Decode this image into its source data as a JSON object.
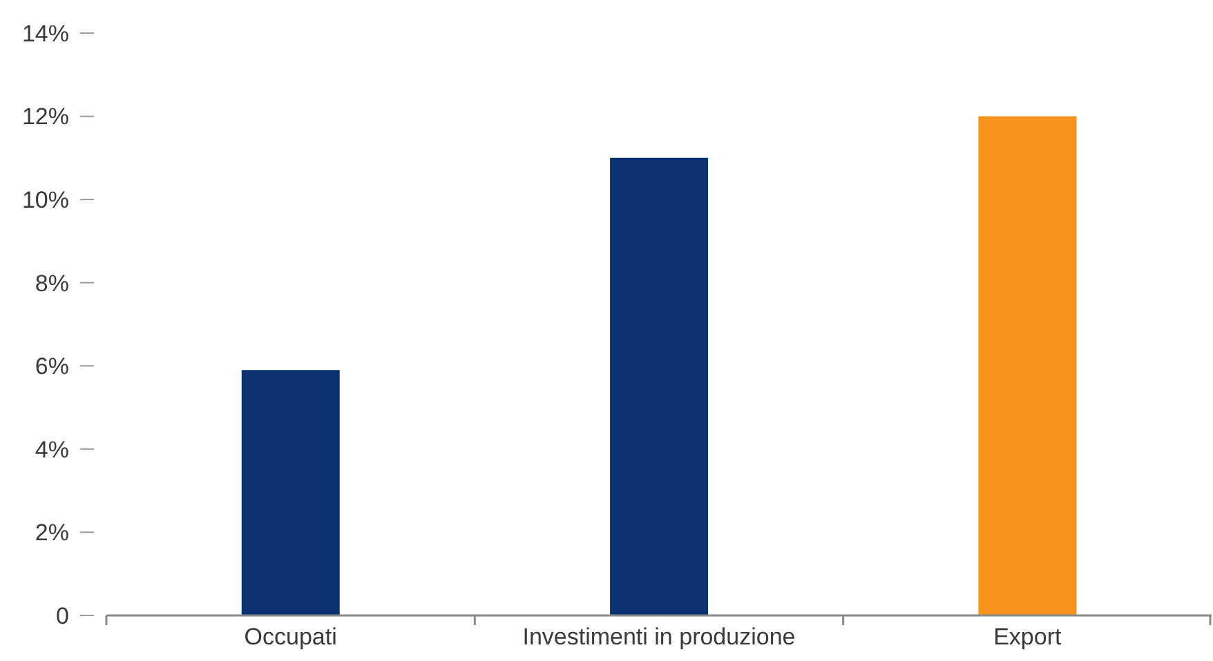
{
  "chart_data": {
    "type": "bar",
    "categories": [
      "Occupati",
      "Investimenti in produzione",
      "Export"
    ],
    "values": [
      5.9,
      11,
      12
    ],
    "colors": [
      "#0b3170",
      "#0b3170",
      "#f6921e"
    ],
    "ylim": [
      0,
      14
    ],
    "yticks": [
      0,
      {
        "value": 2,
        "label": "2%"
      },
      {
        "value": 4,
        "label": "4%"
      },
      {
        "value": 6,
        "label": "6%"
      },
      {
        "value": 8,
        "label": "8%"
      },
      {
        "value": 10,
        "label": "10%"
      },
      {
        "value": 12,
        "label": "12%"
      },
      {
        "value": 14,
        "label": "14%"
      }
    ]
  }
}
